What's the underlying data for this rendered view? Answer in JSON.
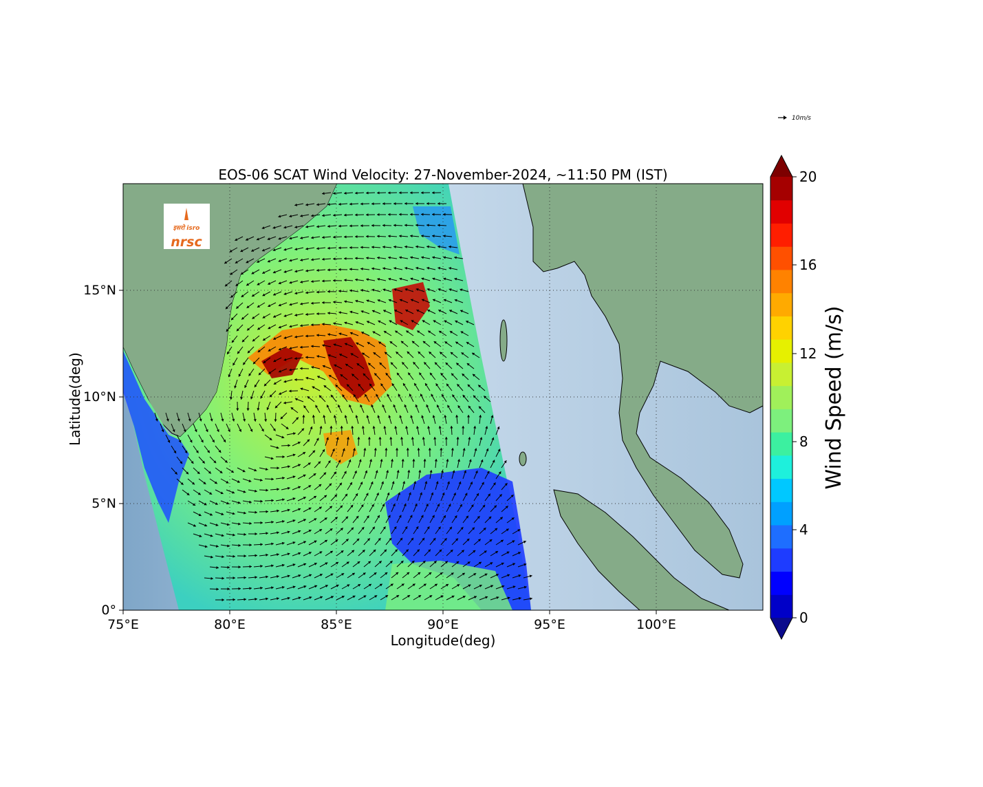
{
  "title": "EOS-06 SCAT Wind Velocity: 27-November-2024, ~11:50 PM (IST)",
  "x_axis": {
    "label": "Longitude(deg)",
    "ticks": [
      "75°E",
      "80°E",
      "85°E",
      "90°E",
      "95°E",
      "100°E"
    ],
    "range": [
      75,
      105
    ]
  },
  "y_axis": {
    "label": "Latitude(deg)",
    "ticks": [
      "0°",
      "5°N",
      "10°N",
      "15°N"
    ],
    "range": [
      0,
      20
    ]
  },
  "colorbar": {
    "label": "Wind Speed (m/s)",
    "ticks": [
      "0",
      "4",
      "8",
      "12",
      "16",
      "20"
    ],
    "range": [
      0,
      20
    ],
    "colors": [
      "#0a0a8c",
      "#0000c8",
      "#0000ff",
      "#1e3cff",
      "#1e6eff",
      "#00a0ff",
      "#00c8ff",
      "#1ef0dc",
      "#3cf0a0",
      "#7df07d",
      "#a0f05a",
      "#c8f032",
      "#e6f000",
      "#ffd200",
      "#ffaa00",
      "#ff8200",
      "#ff5000",
      "#ff1e00",
      "#e10000",
      "#a50000",
      "#7d0000"
    ]
  },
  "reference_vector": {
    "label": "10m/s",
    "speed_ms": 10
  },
  "logo": {
    "top_text": "इसरो isro",
    "bottom_text": "nrsc"
  },
  "cyclone_center": {
    "lon": 82.8,
    "lat": 9.0
  },
  "colors": {
    "land": "#7fa886",
    "ocean": "#b9cfe0",
    "arrow": "#000000",
    "grid": "#333333"
  }
}
